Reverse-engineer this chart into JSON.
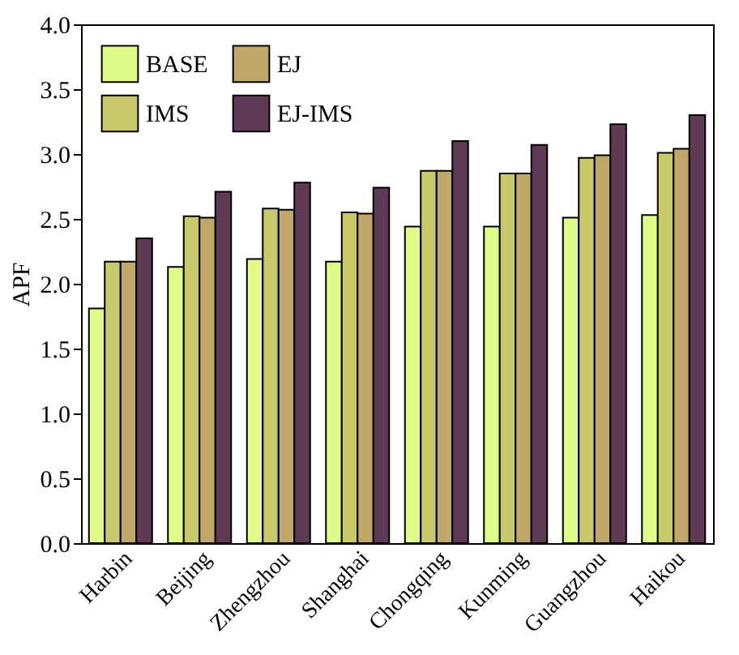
{
  "chart_data": {
    "type": "bar",
    "ylabel": "APF",
    "categories": [
      "Harbin",
      "Beijing",
      "Zhengzhou",
      "Shanghai",
      "Chongqing",
      "Kunming",
      "Guangzhou",
      "Haikou"
    ],
    "series": [
      {
        "name": "BASE",
        "color": "#e0fb8a",
        "values": [
          1.81,
          2.13,
          2.19,
          2.17,
          2.44,
          2.44,
          2.51,
          2.53
        ]
      },
      {
        "name": "IMS",
        "color": "#c8c96a",
        "values": [
          2.17,
          2.52,
          2.58,
          2.55,
          2.87,
          2.85,
          2.97,
          3.01
        ]
      },
      {
        "name": "EJ",
        "color": "#c0a86a",
        "values": [
          2.17,
          2.51,
          2.57,
          2.54,
          2.87,
          2.85,
          2.99,
          3.04
        ]
      },
      {
        "name": "EJ-IMS",
        "color": "#5e3a55",
        "values": [
          2.35,
          2.71,
          2.78,
          2.74,
          3.1,
          3.07,
          3.23,
          3.3
        ]
      }
    ],
    "ylim": [
      0,
      4
    ],
    "yticks": [
      {
        "value": 0,
        "label": "0.0"
      },
      {
        "value": 0.5,
        "label": "0.5"
      },
      {
        "value": 1,
        "label": "1.0"
      },
      {
        "value": 1.5,
        "label": "1.5"
      },
      {
        "value": 2,
        "label": "2.0"
      },
      {
        "value": 2.5,
        "label": "2.5"
      },
      {
        "value": 3,
        "label": "3.0"
      },
      {
        "value": 3.5,
        "label": "3.5"
      },
      {
        "value": 4,
        "label": "4.0"
      }
    ],
    "grid": false,
    "legend": "top left"
  }
}
